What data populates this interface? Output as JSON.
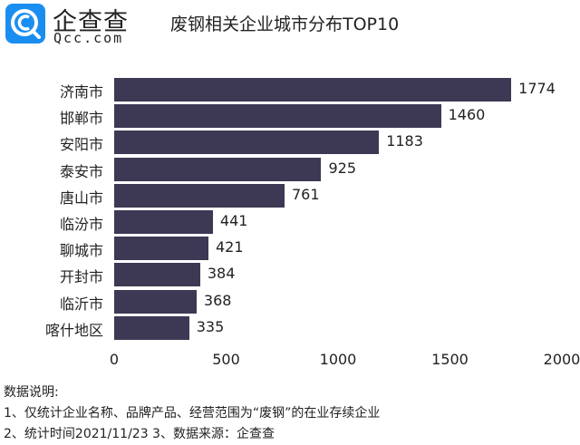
{
  "logo": {
    "cn": "企查查",
    "en": "Qcc.com",
    "color": "#1a8ef0"
  },
  "title": "废钢相关企业城市分布TOP10",
  "chart_data": {
    "type": "bar",
    "orientation": "horizontal",
    "title": "废钢相关企业城市分布TOP10",
    "categories": [
      "济南市",
      "邯郸市",
      "安阳市",
      "泰安市",
      "唐山市",
      "临汾市",
      "聊城市",
      "开封市",
      "临沂市",
      "喀什地区"
    ],
    "values": [
      1774,
      1460,
      1183,
      925,
      761,
      441,
      421,
      384,
      368,
      335
    ],
    "xlabel": "",
    "ylabel": "",
    "xlim": [
      0,
      2000
    ],
    "x_ticks": [
      "0",
      "500",
      "1000",
      "1500",
      "2000"
    ],
    "bar_color": "#3d3853",
    "grid": false,
    "legend": "none",
    "data_labels": true
  },
  "notes": {
    "heading": "数据说明:",
    "line1": "1、仅统计企业名称、品牌产品、经营范围为“废钢”的在业存续企业",
    "line2": "2、统计时间2021/11/23   3、数据来源：企查查"
  }
}
